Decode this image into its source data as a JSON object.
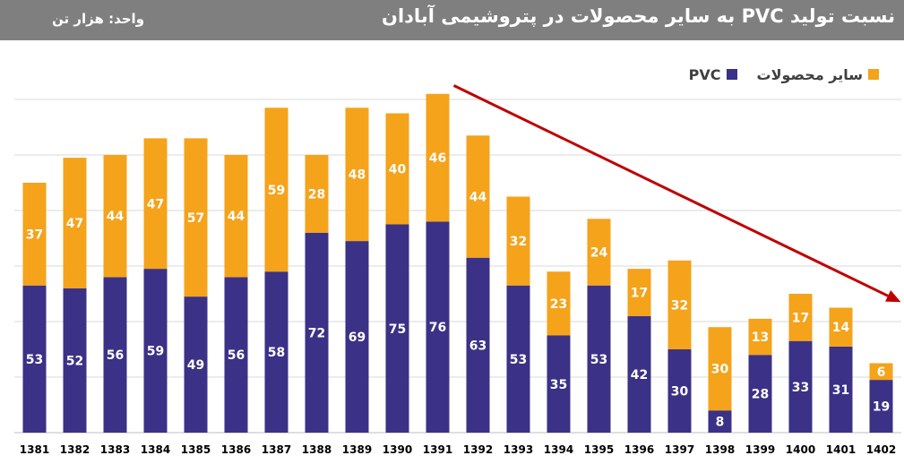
{
  "header": {
    "title": "نسبت تولید PVC به سایر محصولات در پتروشیمی آبادان",
    "unit": "واحد: هزار تن"
  },
  "colors": {
    "header_bg": "#7f7f7f",
    "pvc": "#3b3186",
    "other": "#f4a31b",
    "trend_arrow": "#c00000",
    "grid": "#d9d9d9"
  },
  "chart_data": {
    "type": "bar",
    "stacked": true,
    "categories": [
      "1381",
      "1382",
      "1383",
      "1384",
      "1385",
      "1386",
      "1387",
      "1388",
      "1389",
      "1390",
      "1391",
      "1392",
      "1393",
      "1394",
      "1395",
      "1396",
      "1397",
      "1398",
      "1399",
      "1400",
      "1401",
      "1402"
    ],
    "series": [
      {
        "name": "PVC",
        "values": [
          53,
          52,
          56,
          59,
          49,
          56,
          58,
          72,
          69,
          75,
          76,
          63,
          53,
          35,
          53,
          42,
          30,
          8,
          28,
          33,
          31,
          19
        ]
      },
      {
        "name": "سایر محصولات",
        "values": [
          37,
          47,
          44,
          47,
          57,
          44,
          59,
          28,
          48,
          40,
          46,
          44,
          32,
          23,
          24,
          17,
          32,
          30,
          13,
          17,
          14,
          6
        ]
      }
    ],
    "ylim": [
      0,
      120
    ],
    "grid": true,
    "legend_position": "top-right",
    "annotation": "downward trend arrow from 1391 to 1402"
  }
}
